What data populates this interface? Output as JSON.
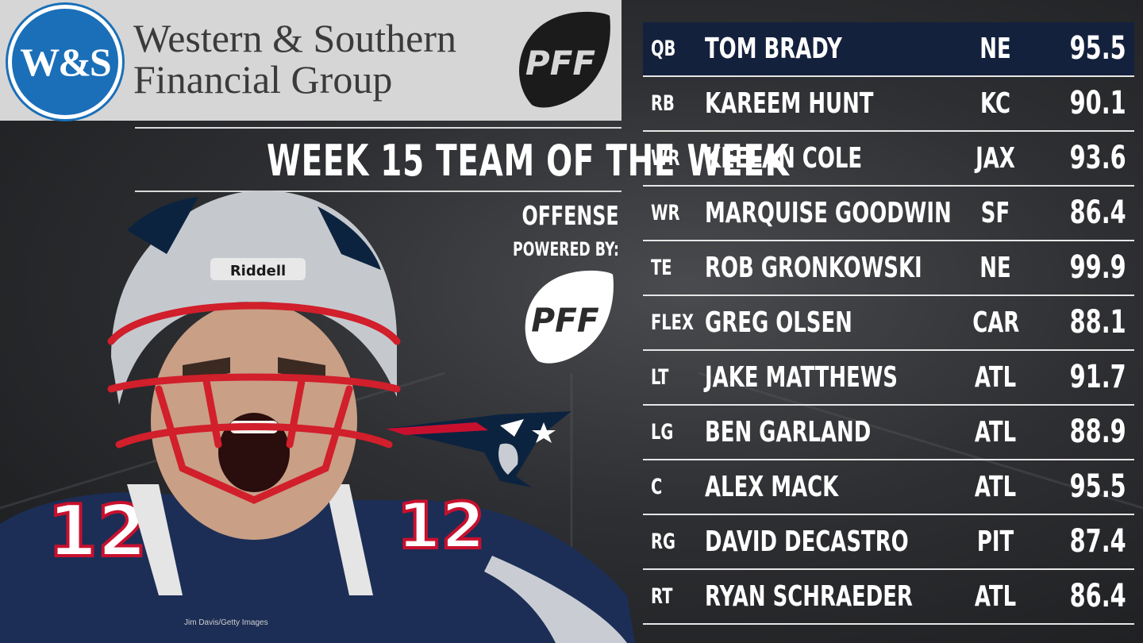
{
  "sponsor": {
    "seal_text": "W&S",
    "name_line1": "Western & Southern",
    "name_line2": "Financial Group"
  },
  "brand": {
    "logo_text": "PFF"
  },
  "title": "WEEK 15 TEAM OF THE WEEK",
  "unit_label": "OFFENSE",
  "powered_by_label": "POWERED BY:",
  "photo_credit": "Jim Davis/Getty Images",
  "helmet_brand": "Riddell",
  "jersey_number": "12",
  "colors": {
    "highlight_row": "#14213d",
    "sponsor_blue": "#1a6fb8",
    "patriots_red": "#c8102e",
    "patriots_navy": "#0c2340"
  },
  "roster": [
    {
      "pos": "QB",
      "name": "TOM BRADY",
      "team": "NE",
      "grade": "95.5",
      "highlight": true
    },
    {
      "pos": "RB",
      "name": "KAREEM HUNT",
      "team": "KC",
      "grade": "90.1"
    },
    {
      "pos": "WR",
      "name": "KEELAN COLE",
      "team": "JAX",
      "grade": "93.6"
    },
    {
      "pos": "WR",
      "name": "MARQUISE GOODWIN",
      "team": "SF",
      "grade": "86.4"
    },
    {
      "pos": "TE",
      "name": "ROB GRONKOWSKI",
      "team": "NE",
      "grade": "99.9"
    },
    {
      "pos": "FLEX",
      "name": "GREG OLSEN",
      "team": "CAR",
      "grade": "88.1"
    },
    {
      "pos": "LT",
      "name": "JAKE MATTHEWS",
      "team": "ATL",
      "grade": "91.7"
    },
    {
      "pos": "LG",
      "name": "BEN GARLAND",
      "team": "ATL",
      "grade": "88.9"
    },
    {
      "pos": "C",
      "name": "ALEX MACK",
      "team": "ATL",
      "grade": "95.5"
    },
    {
      "pos": "RG",
      "name": "DAVID DECASTRO",
      "team": "PIT",
      "grade": "87.4"
    },
    {
      "pos": "RT",
      "name": "RYAN SCHRAEDER",
      "team": "ATL",
      "grade": "86.4"
    }
  ]
}
